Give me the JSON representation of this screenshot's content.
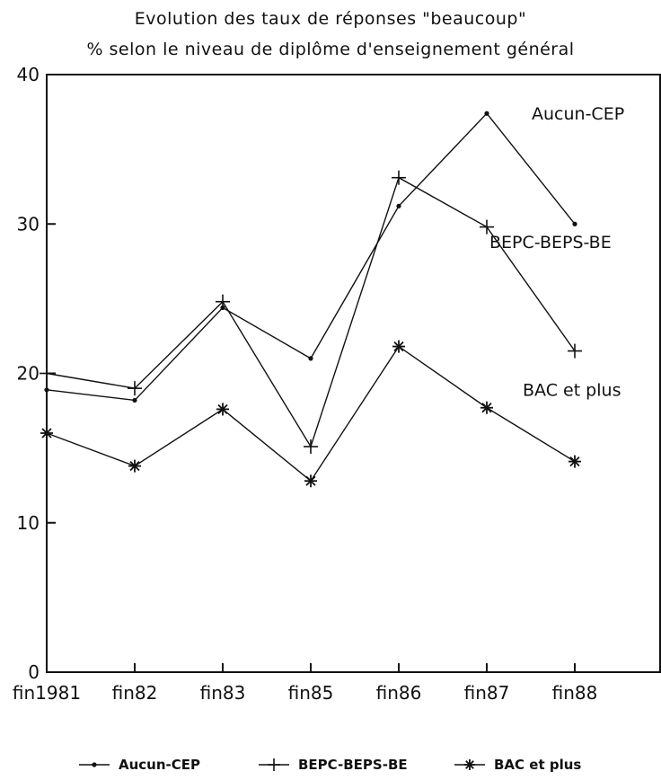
{
  "chart_data": {
    "type": "line",
    "title": "Evolution des taux de réponses \"beaucoup\"",
    "subtitle": "% selon le niveau de diplôme d'enseignement général",
    "categories": [
      "fin1981",
      "fin82",
      "fin83",
      "fin85",
      "fin86",
      "fin87",
      "fin88"
    ],
    "ylim": [
      0,
      40
    ],
    "yticks": [
      0,
      10,
      20,
      30,
      40
    ],
    "grid": false,
    "legend_position": "bottom",
    "series": [
      {
        "name": "Aucun-CEP",
        "marker": "dot",
        "values": [
          18.9,
          18.2,
          24.4,
          21.0,
          31.2,
          37.4,
          30.0
        ],
        "end_label": "Aucun-CEP"
      },
      {
        "name": "BEPC-BEPS-BE",
        "marker": "plus",
        "values": [
          20.0,
          19.0,
          24.8,
          15.1,
          33.1,
          29.8,
          21.5
        ],
        "end_label": "BEPC-BEPS-BE"
      },
      {
        "name": "BAC et plus",
        "marker": "asterisk",
        "values": [
          16.0,
          13.8,
          17.6,
          12.8,
          21.8,
          17.7,
          14.1
        ],
        "end_label": "BAC et plus"
      }
    ]
  }
}
